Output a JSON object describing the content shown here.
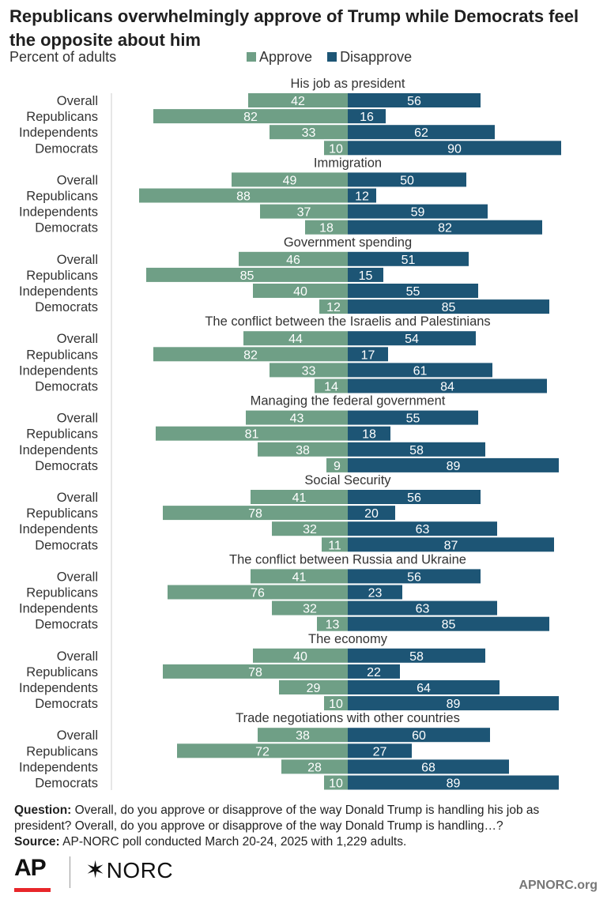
{
  "title": "Republicans overwhelmingly approve of Trump while Democrats feel the opposite about him",
  "subtitle": "Percent of adults",
  "colors": {
    "approve": "#6f9f86",
    "disapprove": "#1d5575",
    "axis": "#cccccc"
  },
  "chart_data": {
    "type": "bar",
    "orientation": "horizontal-diverging",
    "legend": [
      {
        "key": "approve",
        "label": "Approve"
      },
      {
        "key": "disapprove",
        "label": "Disapprove"
      }
    ],
    "legend_placement": "top",
    "groups": [
      {
        "title": "His job as president",
        "rows": [
          {
            "label": "Overall",
            "approve": 42,
            "disapprove": 56
          },
          {
            "label": "Republicans",
            "approve": 82,
            "disapprove": 16
          },
          {
            "label": "Independents",
            "approve": 33,
            "disapprove": 62
          },
          {
            "label": "Democrats",
            "approve": 10,
            "disapprove": 90
          }
        ]
      },
      {
        "title": "Immigration",
        "rows": [
          {
            "label": "Overall",
            "approve": 49,
            "disapprove": 50
          },
          {
            "label": "Republicans",
            "approve": 88,
            "disapprove": 12
          },
          {
            "label": "Independents",
            "approve": 37,
            "disapprove": 59
          },
          {
            "label": "Democrats",
            "approve": 18,
            "disapprove": 82
          }
        ]
      },
      {
        "title": "Government spending",
        "rows": [
          {
            "label": "Overall",
            "approve": 46,
            "disapprove": 51
          },
          {
            "label": "Republicans",
            "approve": 85,
            "disapprove": 15
          },
          {
            "label": "Independents",
            "approve": 40,
            "disapprove": 55
          },
          {
            "label": "Democrats",
            "approve": 12,
            "disapprove": 85
          }
        ]
      },
      {
        "title": "The conflict between the Israelis and Palestinians",
        "rows": [
          {
            "label": "Overall",
            "approve": 44,
            "disapprove": 54
          },
          {
            "label": "Republicans",
            "approve": 82,
            "disapprove": 17
          },
          {
            "label": "Independents",
            "approve": 33,
            "disapprove": 61
          },
          {
            "label": "Democrats",
            "approve": 14,
            "disapprove": 84
          }
        ]
      },
      {
        "title": "Managing the federal government",
        "rows": [
          {
            "label": "Overall",
            "approve": 43,
            "disapprove": 55
          },
          {
            "label": "Republicans",
            "approve": 81,
            "disapprove": 18
          },
          {
            "label": "Independents",
            "approve": 38,
            "disapprove": 58
          },
          {
            "label": "Democrats",
            "approve": 9,
            "disapprove": 89
          }
        ]
      },
      {
        "title": "Social Security",
        "rows": [
          {
            "label": "Overall",
            "approve": 41,
            "disapprove": 56
          },
          {
            "label": "Republicans",
            "approve": 78,
            "disapprove": 20
          },
          {
            "label": "Independents",
            "approve": 32,
            "disapprove": 63
          },
          {
            "label": "Democrats",
            "approve": 11,
            "disapprove": 87
          }
        ]
      },
      {
        "title": "The conflict between Russia and Ukraine",
        "rows": [
          {
            "label": "Overall",
            "approve": 41,
            "disapprove": 56
          },
          {
            "label": "Republicans",
            "approve": 76,
            "disapprove": 23
          },
          {
            "label": "Independents",
            "approve": 32,
            "disapprove": 63
          },
          {
            "label": "Democrats",
            "approve": 13,
            "disapprove": 85
          }
        ]
      },
      {
        "title": "The economy",
        "rows": [
          {
            "label": "Overall",
            "approve": 40,
            "disapprove": 58
          },
          {
            "label": "Republicans",
            "approve": 78,
            "disapprove": 22
          },
          {
            "label": "Independents",
            "approve": 29,
            "disapprove": 64
          },
          {
            "label": "Democrats",
            "approve": 10,
            "disapprove": 89
          }
        ]
      },
      {
        "title": "Trade negotiations with other countries",
        "rows": [
          {
            "label": "Overall",
            "approve": 38,
            "disapprove": 60
          },
          {
            "label": "Republicans",
            "approve": 72,
            "disapprove": 27
          },
          {
            "label": "Independents",
            "approve": 28,
            "disapprove": 68
          },
          {
            "label": "Democrats",
            "approve": 10,
            "disapprove": 89
          }
        ]
      }
    ]
  },
  "footer": {
    "question_label": "Question:",
    "question_text": "Overall, do you approve or disapprove of the way Donald Trump is handling his job as president? Overall, do you approve or disapprove of the way Donald Trump is handling…?",
    "source_label": "Source:",
    "source_text": "AP-NORC poll conducted March 20-24, 2025 with 1,229 adults."
  },
  "logos": {
    "ap": "AP",
    "norc": "NORC",
    "site": "APNORC.org"
  }
}
